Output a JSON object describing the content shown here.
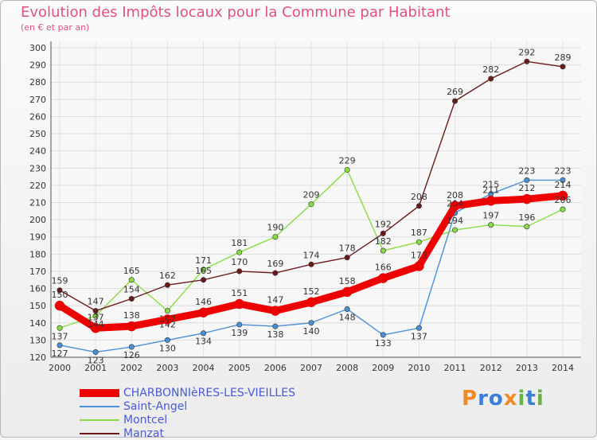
{
  "chart_data": {
    "type": "line",
    "title": "Evolution des Impôts locaux pour la Commune par Habitant",
    "subtitle": "(en € et par an)",
    "xlabel": "",
    "ylabel": "",
    "categories": [
      "2000",
      "2001",
      "2002",
      "2003",
      "2004",
      "2005",
      "2006",
      "2007",
      "2008",
      "2009",
      "2010",
      "2011",
      "2012",
      "2013",
      "2014"
    ],
    "ylim": [
      120,
      300
    ],
    "yticks": [
      120,
      130,
      140,
      150,
      160,
      170,
      180,
      190,
      200,
      210,
      220,
      230,
      240,
      250,
      260,
      270,
      280,
      290,
      300
    ],
    "legend_position": "bottom-left",
    "series": [
      {
        "name": "CHARBONNIèRES-LES-VIEILLES",
        "color": "#ee0000",
        "values": [
          150,
          137,
          138,
          142,
          146,
          151,
          147,
          152,
          158,
          166,
          173,
          208,
          211,
          212,
          214
        ]
      },
      {
        "name": "Saint-Angel",
        "color": "#4a90d9",
        "values": [
          127,
          123,
          126,
          130,
          134,
          139,
          138,
          140,
          148,
          133,
          137,
          204,
          215,
          223,
          223
        ]
      },
      {
        "name": "Montcel",
        "color": "#88dd44",
        "values": [
          137,
          144,
          165,
          147,
          171,
          181,
          190,
          209,
          229,
          182,
          187,
          194,
          197,
          196,
          206
        ]
      },
      {
        "name": "Manzat",
        "color": "#6b1a1a",
        "values": [
          159,
          147,
          154,
          162,
          165,
          170,
          169,
          174,
          178,
          192,
          208,
          269,
          282,
          292,
          289
        ]
      }
    ]
  },
  "logo": {
    "text": "Proxiti"
  }
}
